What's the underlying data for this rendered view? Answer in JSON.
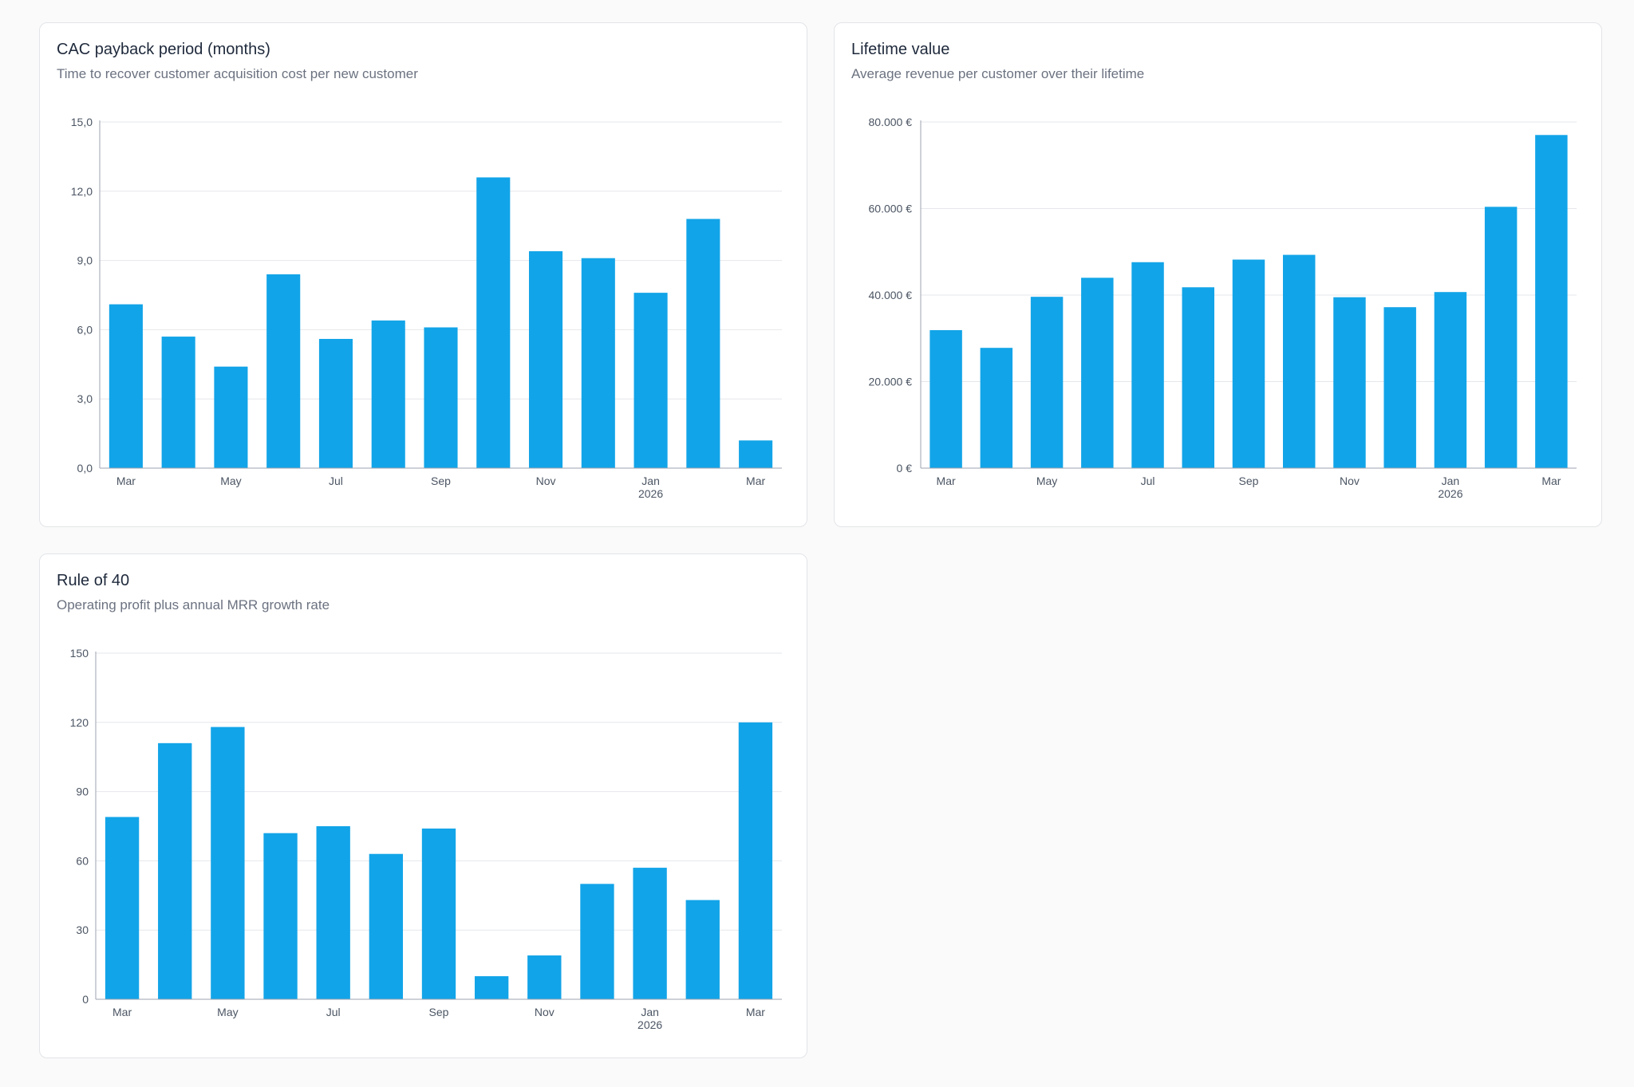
{
  "colors": {
    "bar": "#12a4e8",
    "grid": "#e5e7eb",
    "axis": "#9ca3af",
    "tick_text": "#4b5563"
  },
  "cards": {
    "cac": {
      "title": "CAC payback period (months)",
      "subtitle": "Time to recover customer acquisition cost per new customer"
    },
    "ltv": {
      "title": "Lifetime value",
      "subtitle": "Average revenue per customer over their lifetime"
    },
    "r40": {
      "title": "Rule of 40",
      "subtitle": "Operating profit plus annual MRR growth rate"
    }
  },
  "chart_data": [
    {
      "id": "cac",
      "type": "bar",
      "title": "CAC payback period (months)",
      "categories": [
        "Mar 2025",
        "Apr 2025",
        "May 2025",
        "Jun 2025",
        "Jul 2025",
        "Aug 2025",
        "Sep 2025",
        "Oct 2025",
        "Nov 2025",
        "Dec 2025",
        "Jan 2026",
        "Feb 2026",
        "Mar 2026"
      ],
      "values": [
        7.1,
        5.7,
        4.4,
        8.4,
        5.6,
        6.4,
        6.1,
        12.6,
        9.4,
        9.1,
        7.6,
        10.8,
        1.2
      ],
      "ylim": [
        0,
        15
      ],
      "yticks": [
        "0,0",
        "3,0",
        "6,0",
        "9,0",
        "12,0",
        "15,0"
      ],
      "xtick_labels": [
        {
          "index": 0,
          "label": "Mar",
          "sub": ""
        },
        {
          "index": 2,
          "label": "May",
          "sub": ""
        },
        {
          "index": 4,
          "label": "Jul",
          "sub": ""
        },
        {
          "index": 6,
          "label": "Sep",
          "sub": ""
        },
        {
          "index": 8,
          "label": "Nov",
          "sub": ""
        },
        {
          "index": 10,
          "label": "Jan",
          "sub": "2026"
        },
        {
          "index": 12,
          "label": "Mar",
          "sub": ""
        }
      ],
      "grid": true,
      "legend": "none"
    },
    {
      "id": "ltv",
      "type": "bar",
      "title": "Lifetime value",
      "categories": [
        "Mar 2025",
        "Apr 2025",
        "May 2025",
        "Jun 2025",
        "Jul 2025",
        "Aug 2025",
        "Sep 2025",
        "Oct 2025",
        "Nov 2025",
        "Dec 2025",
        "Jan 2026",
        "Feb 2026",
        "Mar 2026"
      ],
      "values": [
        31900,
        27800,
        39600,
        44000,
        47600,
        41800,
        48200,
        49300,
        39500,
        37200,
        40700,
        60400,
        77000
      ],
      "ylim": [
        0,
        80000
      ],
      "yticks": [
        "0 €",
        "20.000 €",
        "40.000 €",
        "60.000 €",
        "80.000 €"
      ],
      "xtick_labels": [
        {
          "index": 0,
          "label": "Mar",
          "sub": ""
        },
        {
          "index": 2,
          "label": "May",
          "sub": ""
        },
        {
          "index": 4,
          "label": "Jul",
          "sub": ""
        },
        {
          "index": 6,
          "label": "Sep",
          "sub": ""
        },
        {
          "index": 8,
          "label": "Nov",
          "sub": ""
        },
        {
          "index": 10,
          "label": "Jan",
          "sub": "2026"
        },
        {
          "index": 12,
          "label": "Mar",
          "sub": ""
        }
      ],
      "grid": true,
      "legend": "none"
    },
    {
      "id": "r40",
      "type": "bar",
      "title": "Rule of 40",
      "categories": [
        "Mar 2025",
        "Apr 2025",
        "May 2025",
        "Jun 2025",
        "Jul 2025",
        "Aug 2025",
        "Sep 2025",
        "Oct 2025",
        "Nov 2025",
        "Dec 2025",
        "Jan 2026",
        "Feb 2026",
        "Mar 2026"
      ],
      "values": [
        79,
        111,
        118,
        72,
        75,
        63,
        74,
        10,
        19,
        50,
        57,
        43,
        120
      ],
      "ylim": [
        0,
        150
      ],
      "yticks": [
        "0",
        "30",
        "60",
        "90",
        "120",
        "150"
      ],
      "xtick_labels": [
        {
          "index": 0,
          "label": "Mar",
          "sub": ""
        },
        {
          "index": 2,
          "label": "May",
          "sub": ""
        },
        {
          "index": 4,
          "label": "Jul",
          "sub": ""
        },
        {
          "index": 6,
          "label": "Sep",
          "sub": ""
        },
        {
          "index": 8,
          "label": "Nov",
          "sub": ""
        },
        {
          "index": 10,
          "label": "Jan",
          "sub": "2026"
        },
        {
          "index": 12,
          "label": "Mar",
          "sub": ""
        }
      ],
      "grid": true,
      "legend": "none"
    }
  ]
}
